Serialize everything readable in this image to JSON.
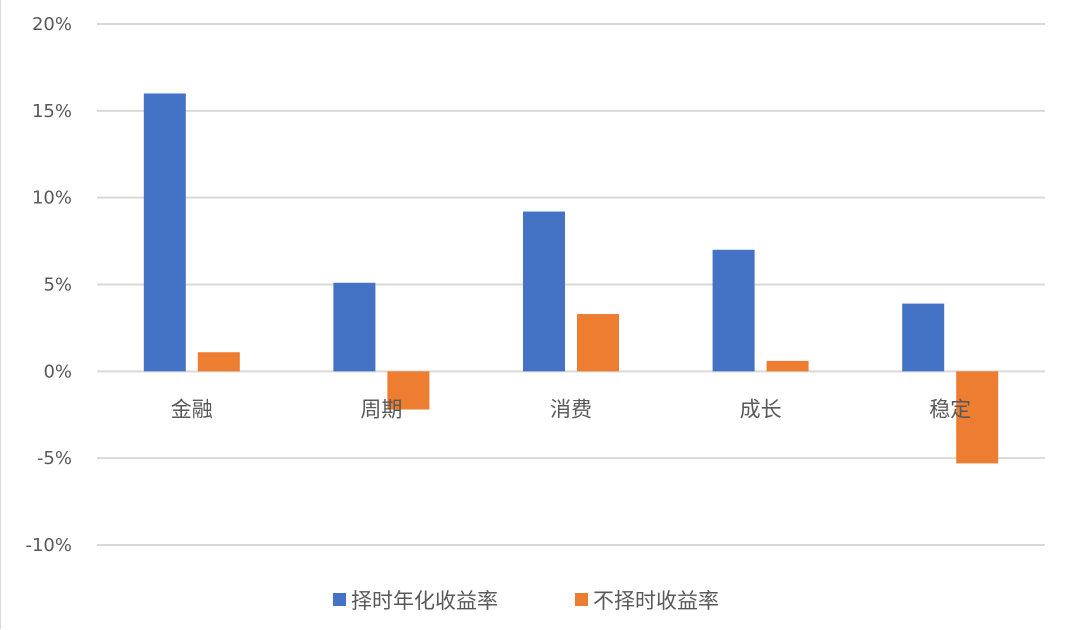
{
  "chart_data": {
    "type": "bar",
    "categories": [
      "金融",
      "周期",
      "消费",
      "成长",
      "稳定"
    ],
    "series": [
      {
        "name": "择时年化收益率",
        "color": "#4472C4",
        "values": [
          16.0,
          5.1,
          9.2,
          7.0,
          3.9
        ]
      },
      {
        "name": "不择时收益率",
        "color": "#ED7D31",
        "values": [
          1.1,
          -2.2,
          3.3,
          0.6,
          -5.3
        ]
      }
    ],
    "y_ticks": [
      20,
      15,
      10,
      5,
      0,
      -5,
      -10
    ],
    "y_tick_labels": [
      "20%",
      "15%",
      "10%",
      "5%",
      "0%",
      "-5%",
      "-10%"
    ],
    "ylim": [
      -10,
      20
    ],
    "y_unit": "%",
    "grid": true,
    "legend": "bottom",
    "title": "",
    "xlabel": "",
    "ylabel": ""
  }
}
